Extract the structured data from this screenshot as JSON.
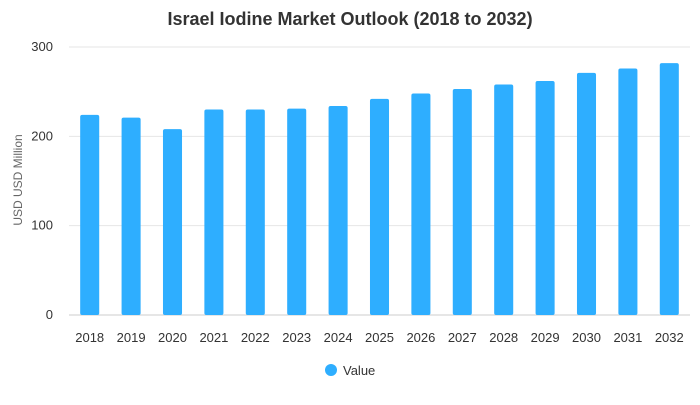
{
  "chart_data": {
    "type": "bar",
    "title": "Israel Iodine Market Outlook (2018 to 2032)",
    "ylabel": "USD USD Million",
    "xlabel": "",
    "categories": [
      "2018",
      "2019",
      "2020",
      "2021",
      "2022",
      "2023",
      "2024",
      "2025",
      "2026",
      "2027",
      "2028",
      "2029",
      "2030",
      "2031",
      "2032"
    ],
    "series": [
      {
        "name": "Value",
        "values": [
          224,
          221,
          208,
          230,
          230,
          231,
          234,
          242,
          248,
          253,
          258,
          262,
          271,
          276,
          282
        ]
      }
    ],
    "ylim": [
      0,
      300
    ],
    "yticks": [
      0,
      100,
      200,
      300
    ],
    "grid": true,
    "legend_position": "bottom-center",
    "colors": {
      "bar": "#2EAEFF"
    }
  }
}
